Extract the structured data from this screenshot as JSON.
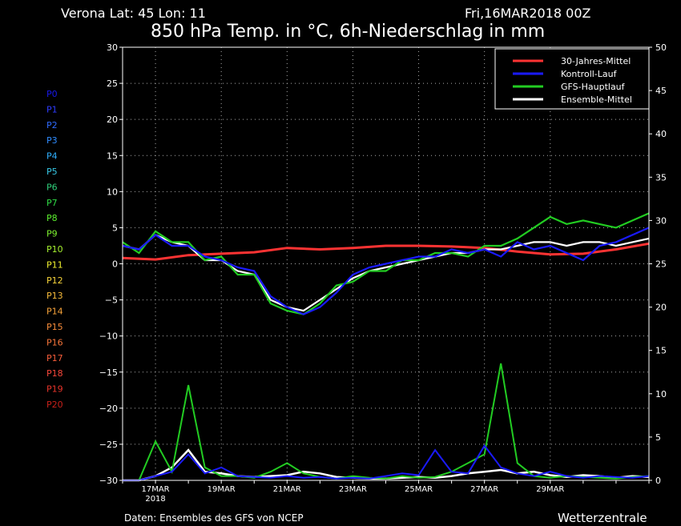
{
  "header": {
    "location": "Verona   Lat: 45 Lon: 11",
    "run": "Fri,16MAR2018 00Z",
    "title": "850 hPa Temp. in °C, 6h-Niederschlag in mm"
  },
  "footer": {
    "source": "Daten: Ensembles des GFS von NCEP",
    "brand": "Wetterzentrale"
  },
  "chart_data": {
    "type": "line",
    "title": "850 hPa Temp. in °C, 6h-Niederschlag in mm",
    "x_unit": "days since 2018-03-16 00Z",
    "xlim": [
      0,
      16
    ],
    "x_tick_labels": [
      {
        "x": 1,
        "label": "17MAR",
        "sub": "2018"
      },
      {
        "x": 3,
        "label": "19MAR"
      },
      {
        "x": 5,
        "label": "21MAR"
      },
      {
        "x": 7,
        "label": "23MAR"
      },
      {
        "x": 9,
        "label": "25MAR"
      },
      {
        "x": 11,
        "label": "27MAR"
      },
      {
        "x": 13,
        "label": "29MAR"
      }
    ],
    "y_left": {
      "min": -30,
      "max": 30,
      "ticks": [
        30,
        25,
        20,
        15,
        10,
        5,
        0,
        -5,
        -10,
        -15,
        -20,
        -25,
        -30
      ]
    },
    "y_right": {
      "min": 0,
      "max": 50,
      "ticks": [
        50,
        45,
        40,
        35,
        30,
        25,
        20,
        15,
        10,
        5,
        0
      ]
    },
    "grid": true,
    "legend_position": "top-right",
    "legend": [
      {
        "label": "30-Jahres-Mittel",
        "color": "#ff3333"
      },
      {
        "label": "Kontroll-Lauf",
        "color": "#1a1aff"
      },
      {
        "label": "GFS-Hauptlauf",
        "color": "#22cc22"
      },
      {
        "label": "Ensemble-Mittel",
        "color": "#ffffff"
      }
    ],
    "members": [
      {
        "name": "P0",
        "color": "#1818e8"
      },
      {
        "name": "P1",
        "color": "#2e3cff"
      },
      {
        "name": "P2",
        "color": "#2f6bff"
      },
      {
        "name": "P3",
        "color": "#2f8cff"
      },
      {
        "name": "P4",
        "color": "#2fb0ff"
      },
      {
        "name": "P5",
        "color": "#37c8e6"
      },
      {
        "name": "P6",
        "color": "#2fcf7a"
      },
      {
        "name": "P7",
        "color": "#2fdc46"
      },
      {
        "name": "P8",
        "color": "#5cf02f"
      },
      {
        "name": "P9",
        "color": "#7df02f"
      },
      {
        "name": "P10",
        "color": "#a6f02f"
      },
      {
        "name": "P11",
        "color": "#f0f02f"
      },
      {
        "name": "P12",
        "color": "#f7d43a"
      },
      {
        "name": "P13",
        "color": "#f7bb3a"
      },
      {
        "name": "P14",
        "color": "#f7a33a"
      },
      {
        "name": "P15",
        "color": "#f78c3a"
      },
      {
        "name": "P16",
        "color": "#f7753a"
      },
      {
        "name": "P17",
        "color": "#f75d3a"
      },
      {
        "name": "P18",
        "color": "#f7463a"
      },
      {
        "name": "P19",
        "color": "#e8342a"
      },
      {
        "name": "P20",
        "color": "#c8201a"
      }
    ],
    "temperature_series": [
      {
        "name": "30-Jahres-Mittel",
        "color": "#ff3333",
        "x": [
          0,
          1,
          2,
          3,
          4,
          5,
          6,
          7,
          8,
          9,
          10,
          11,
          12,
          13,
          14,
          15,
          16
        ],
        "y": [
          0.8,
          0.6,
          1.2,
          1.4,
          1.6,
          2.2,
          2.0,
          2.2,
          2.5,
          2.5,
          2.4,
          2.2,
          1.7,
          1.3,
          1.4,
          2.0,
          2.8
        ]
      },
      {
        "name": "Ensemble-Mittel",
        "color": "#ffffff",
        "x": [
          0,
          0.5,
          1,
          1.5,
          2,
          2.5,
          3,
          3.5,
          4,
          4.5,
          5,
          5.5,
          6,
          6.5,
          7,
          7.5,
          8,
          8.5,
          9,
          9.5,
          10,
          10.5,
          11,
          11.5,
          12,
          12.5,
          13,
          13.5,
          14,
          14.5,
          15,
          15.5,
          16
        ],
        "y": [
          2.5,
          2.0,
          4.0,
          3.0,
          2.5,
          0.5,
          0.5,
          -1.0,
          -1.5,
          -5.0,
          -6.0,
          -6.5,
          -5.0,
          -3.5,
          -2.0,
          -1.0,
          -0.5,
          0.0,
          0.5,
          1.0,
          1.5,
          1.5,
          2.0,
          2.0,
          2.5,
          3.0,
          3.0,
          2.5,
          3.0,
          3.0,
          2.5,
          3.0,
          3.5
        ]
      },
      {
        "name": "GFS-Hauptlauf",
        "color": "#22cc22",
        "x": [
          0,
          0.5,
          1,
          1.5,
          2,
          2.5,
          3,
          3.5,
          4,
          4.5,
          5,
          5.5,
          6,
          6.5,
          7,
          7.5,
          8,
          8.5,
          9,
          9.5,
          10,
          10.5,
          11,
          11.5,
          12,
          12.5,
          13,
          13.5,
          14,
          14.5,
          15,
          15.5,
          16
        ],
        "y": [
          3.0,
          1.5,
          4.5,
          3.0,
          3.0,
          0.5,
          1.0,
          -1.5,
          -1.5,
          -5.5,
          -6.5,
          -7.0,
          -5.5,
          -3.0,
          -2.5,
          -1.0,
          -1.0,
          0.5,
          0.5,
          1.5,
          1.5,
          1.0,
          2.5,
          2.5,
          3.5,
          5.0,
          6.5,
          5.5,
          6.0,
          5.5,
          5.0,
          6.0,
          7.0
        ]
      },
      {
        "name": "Kontroll-Lauf",
        "color": "#1a1aff",
        "x": [
          0,
          0.5,
          1,
          1.5,
          2,
          2.5,
          3,
          3.5,
          4,
          4.5,
          5,
          5.5,
          6,
          6.5,
          7,
          7.5,
          8,
          8.5,
          9,
          9.5,
          10,
          10.5,
          11,
          11.5,
          12,
          12.5,
          13,
          13.5,
          14,
          14.5,
          15,
          15.5,
          16
        ],
        "y": [
          2.5,
          2.0,
          4.0,
          2.5,
          2.5,
          1.0,
          0.5,
          -0.5,
          -1.0,
          -4.5,
          -6.0,
          -7.0,
          -6.0,
          -4.0,
          -1.5,
          -0.5,
          0.0,
          0.5,
          1.0,
          1.0,
          2.0,
          1.5,
          2.0,
          1.0,
          3.0,
          2.0,
          2.5,
          1.5,
          0.5,
          2.5,
          3.0,
          4.0,
          5.0
        ]
      }
    ],
    "precipitation_series": [
      {
        "name": "Ensemble-Mittel",
        "color": "#ffffff",
        "x": [
          0,
          0.5,
          1,
          1.5,
          2,
          2.5,
          3,
          3.5,
          4,
          4.5,
          5,
          5.5,
          6,
          6.5,
          7,
          7.5,
          8,
          8.5,
          9,
          9.5,
          10,
          10.5,
          11,
          11.5,
          12,
          12.5,
          13,
          13.5,
          14,
          14.5,
          15,
          15.5,
          16
        ],
        "y": [
          0,
          0,
          0.5,
          1.5,
          3.5,
          1.0,
          0.8,
          0.5,
          0.4,
          0.5,
          0.6,
          1.0,
          0.8,
          0.4,
          0.3,
          0.2,
          0.2,
          0.3,
          0.4,
          0.3,
          0.5,
          0.8,
          1.0,
          1.2,
          0.8,
          1.0,
          0.6,
          0.4,
          0.6,
          0.5,
          0.3,
          0.5,
          0.4
        ]
      },
      {
        "name": "GFS-Hauptlauf",
        "color": "#22cc22",
        "x": [
          0,
          0.5,
          1,
          1.5,
          2,
          2.5,
          3,
          3.5,
          4,
          4.5,
          5,
          5.5,
          6,
          6.5,
          7,
          7.5,
          8,
          8.5,
          9,
          9.5,
          10,
          10.5,
          11,
          11.5,
          12,
          12.5,
          13,
          13.5,
          14,
          14.5,
          15,
          15.5,
          16
        ],
        "y": [
          0,
          0,
          4.5,
          1.0,
          11.0,
          1.5,
          0.5,
          0.5,
          0.3,
          1.0,
          2.0,
          0.8,
          0.4,
          0.2,
          0.5,
          0.3,
          0.2,
          0.5,
          0.3,
          0.4,
          1.0,
          2.0,
          3.0,
          13.5,
          2.0,
          0.5,
          0.3,
          0.5,
          0.4,
          0.3,
          0.2,
          0.4,
          0.5
        ]
      },
      {
        "name": "Kontroll-Lauf",
        "color": "#1a1aff",
        "x": [
          0,
          0.5,
          1,
          1.5,
          2,
          2.5,
          3,
          3.5,
          4,
          4.5,
          5,
          5.5,
          6,
          6.5,
          7,
          7.5,
          8,
          8.5,
          9,
          9.5,
          10,
          10.5,
          11,
          11.5,
          12,
          12.5,
          13,
          13.5,
          14,
          14.5,
          15,
          15.5,
          16
        ],
        "y": [
          0,
          0,
          0.5,
          1.0,
          3.0,
          0.8,
          1.5,
          0.5,
          0.4,
          0.3,
          0.5,
          0.3,
          0.4,
          0.2,
          0.3,
          0.2,
          0.5,
          0.8,
          0.6,
          3.5,
          1.0,
          0.8,
          4.0,
          1.5,
          0.8,
          0.5,
          1.0,
          0.5,
          0.3,
          0.5,
          0.4,
          0.3,
          0.5
        ]
      }
    ]
  }
}
